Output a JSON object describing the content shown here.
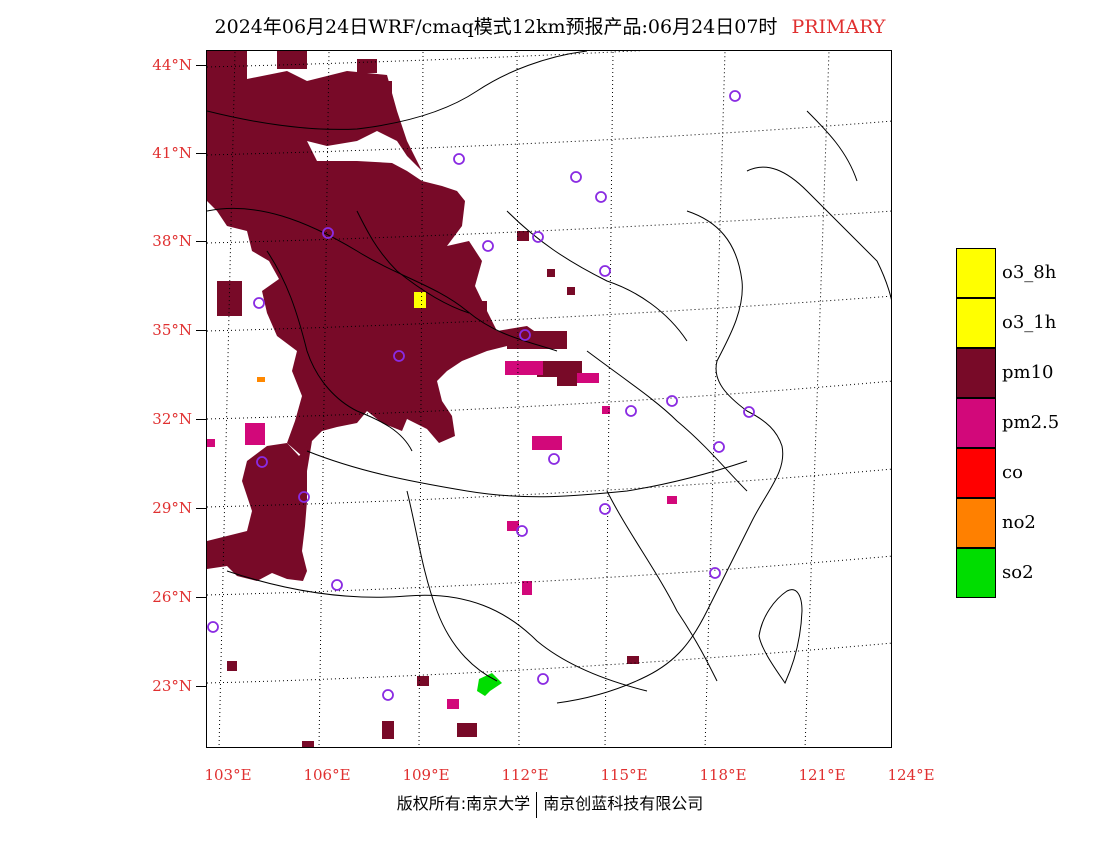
{
  "title": {
    "text": "2024年06月24日WRF/cmaq模式12km预报产品:06月24日07时",
    "tag": "PRIMARY"
  },
  "map": {
    "name": "primary-pollutant-forecast-map",
    "latitude_labels": [
      "44°N",
      "41°N",
      "38°N",
      "35°N",
      "32°N",
      "29°N",
      "26°N",
      "23°N"
    ],
    "longitude_labels": [
      "103°E",
      "106°E",
      "109°E",
      "112°E",
      "115°E",
      "118°E",
      "121°E",
      "124°E"
    ],
    "regions": [
      {
        "pollutant": "pm10",
        "area": "northwest / central-north (Inner Mongolia, Ningxia, Shaanxi, Gansu, Shanxi)"
      },
      {
        "pollutant": "pm10",
        "area": "southwest (Sichuan basin, Chongqing)"
      },
      {
        "pollutant": "o3_8h",
        "area": "patch near 109°E 35.5°N"
      },
      {
        "pollutant": "so2",
        "area": "patch near 112°E 23°N"
      }
    ],
    "colors": {
      "pm10": "#780a28",
      "pm2_5": "#d2087a",
      "o3": "#ffff00",
      "so2": "#00dd00",
      "no2": "#ff8800",
      "station_marker": "#8a2be2",
      "axis_label": "#e03030"
    }
  },
  "legend": [
    {
      "label": "o3_8h",
      "color": "#ffff00"
    },
    {
      "label": "o3_1h",
      "color": "#ffff00"
    },
    {
      "label": "pm10",
      "color": "#780a28"
    },
    {
      "label": "pm2.5",
      "color": "#d2087a"
    },
    {
      "label": "co",
      "color": "#ff0000"
    },
    {
      "label": "no2",
      "color": "#ff8000"
    },
    {
      "label": "so2",
      "color": "#00dd00"
    }
  ],
  "footer": {
    "left": "版权所有:南京大学",
    "right": "南京创蓝科技有限公司"
  }
}
